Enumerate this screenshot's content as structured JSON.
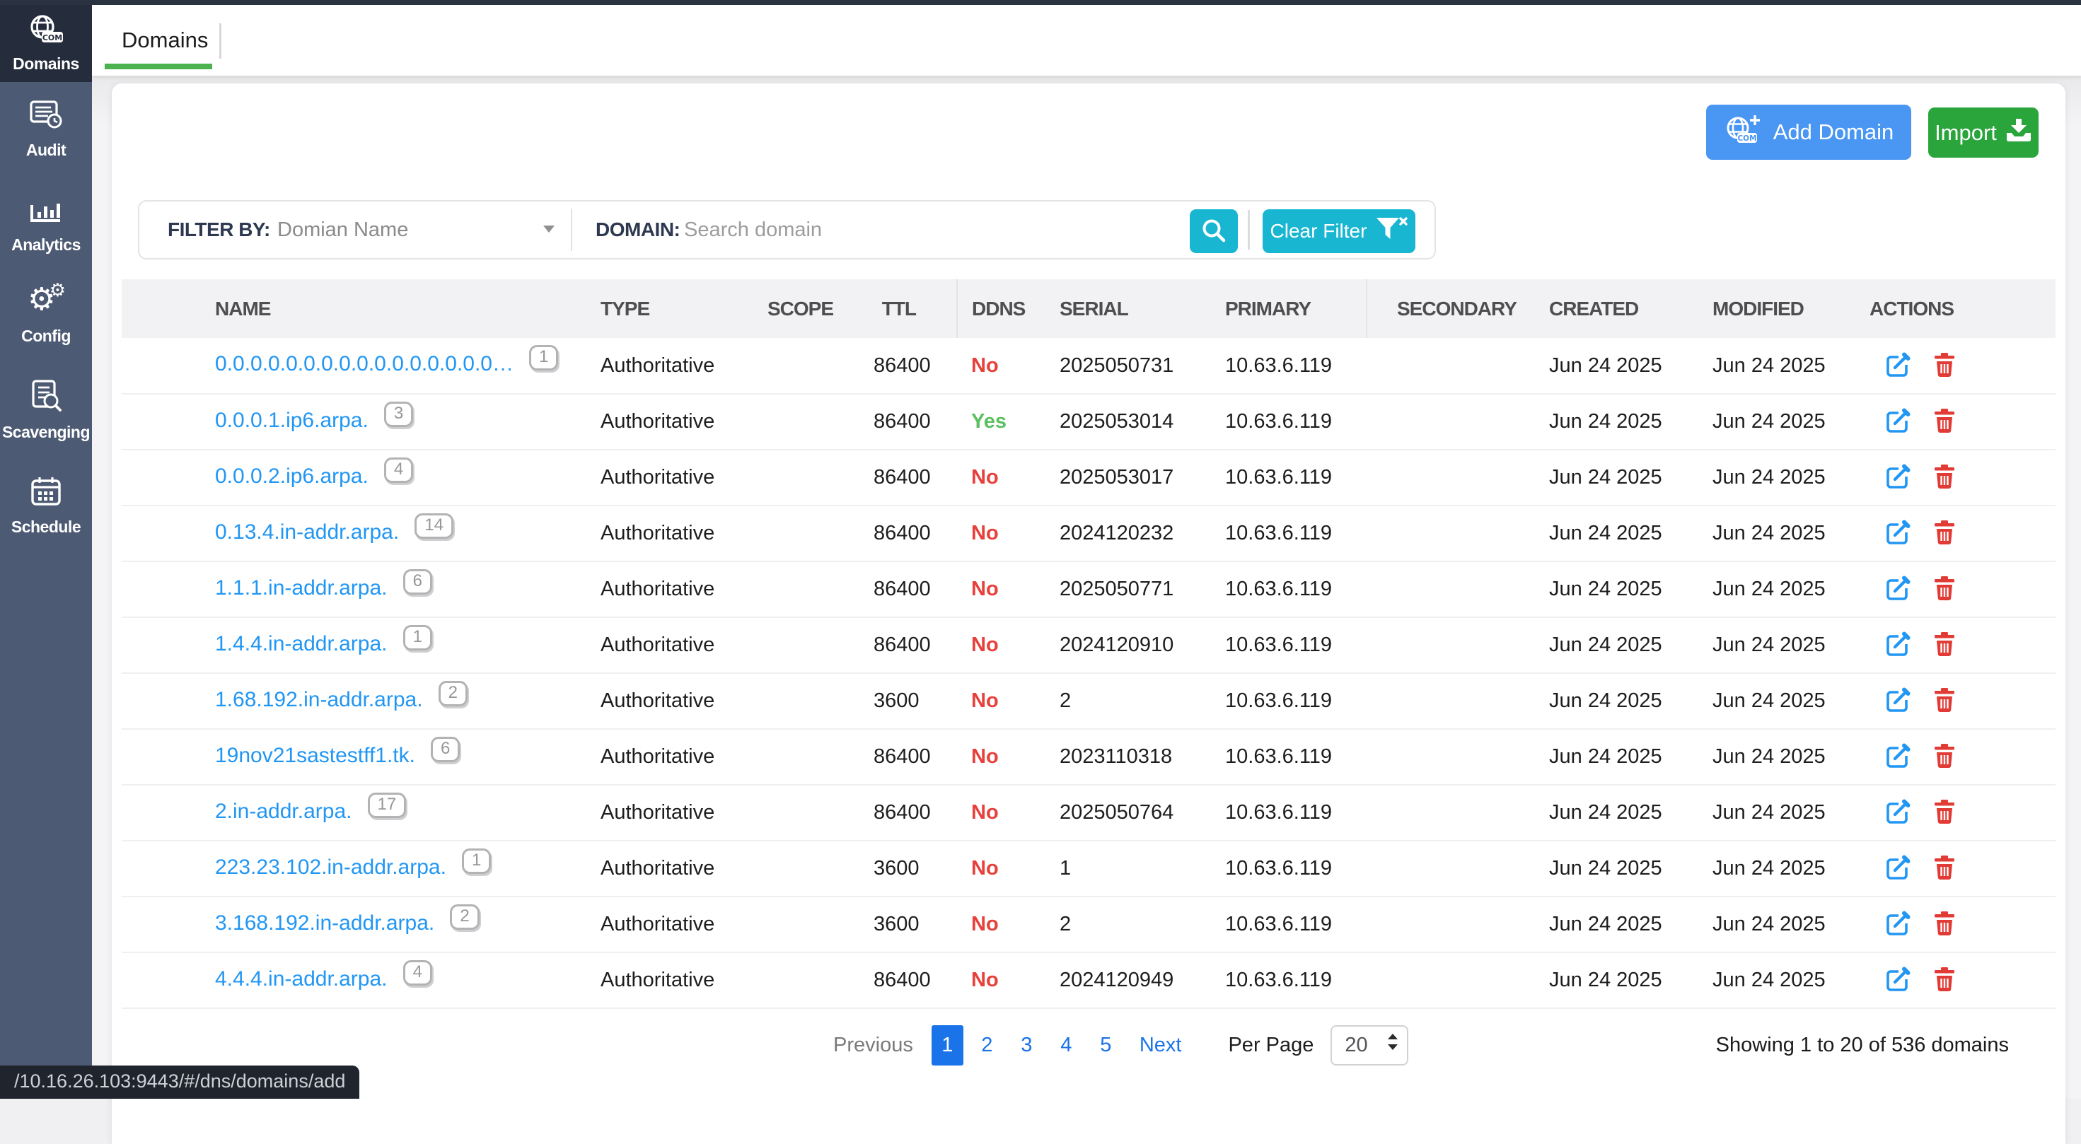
{
  "sidebar": {
    "items": [
      {
        "label": "Domains",
        "icon": "globe-com-icon",
        "active": true
      },
      {
        "label": "Audit",
        "icon": "audit-icon",
        "active": false
      },
      {
        "label": "Analytics",
        "icon": "bar-chart-icon",
        "active": false
      },
      {
        "label": "Config",
        "icon": "gears-icon",
        "active": false
      },
      {
        "label": "Scavenging",
        "icon": "document-search-icon",
        "active": false
      },
      {
        "label": "Schedule",
        "icon": "calendar-icon",
        "active": false
      }
    ]
  },
  "tabbar": {
    "active_tab": "Domains"
  },
  "toolbar": {
    "add_domain_label": "Add Domain",
    "import_label": "Import"
  },
  "filter": {
    "filter_by_label": "FILTER BY:",
    "filter_by_value": "Domian Name",
    "domain_label": "DOMAIN:",
    "search_placeholder": "Search domain",
    "clear_filter_label": "Clear Filter"
  },
  "table": {
    "columns": [
      "NAME",
      "TYPE",
      "SCOPE",
      "TTL",
      "DDNS",
      "SERIAL",
      "PRIMARY",
      "SECONDARY",
      "CREATED",
      "MODIFIED",
      "ACTIONS"
    ],
    "rows": [
      {
        "name": "0.0.0.0.0.0.0.0.0.0.0.0.0.0.0.0…",
        "records": "1",
        "type": "Authoritative",
        "scope": "",
        "ttl": "86400",
        "ddns": "No",
        "serial": "2025050731",
        "primary": "10.63.6.119",
        "secondary": "",
        "created": "Jun 24 2025",
        "modified": "Jun 24 2025"
      },
      {
        "name": "0.0.0.1.ip6.arpa.",
        "records": "3",
        "type": "Authoritative",
        "scope": "",
        "ttl": "86400",
        "ddns": "Yes",
        "serial": "2025053014",
        "primary": "10.63.6.119",
        "secondary": "",
        "created": "Jun 24 2025",
        "modified": "Jun 24 2025"
      },
      {
        "name": "0.0.0.2.ip6.arpa.",
        "records": "4",
        "type": "Authoritative",
        "scope": "",
        "ttl": "86400",
        "ddns": "No",
        "serial": "2025053017",
        "primary": "10.63.6.119",
        "secondary": "",
        "created": "Jun 24 2025",
        "modified": "Jun 24 2025"
      },
      {
        "name": "0.13.4.in-addr.arpa.",
        "records": "14",
        "type": "Authoritative",
        "scope": "",
        "ttl": "86400",
        "ddns": "No",
        "serial": "2024120232",
        "primary": "10.63.6.119",
        "secondary": "",
        "created": "Jun 24 2025",
        "modified": "Jun 24 2025"
      },
      {
        "name": "1.1.1.in-addr.arpa.",
        "records": "6",
        "type": "Authoritative",
        "scope": "",
        "ttl": "86400",
        "ddns": "No",
        "serial": "2025050771",
        "primary": "10.63.6.119",
        "secondary": "",
        "created": "Jun 24 2025",
        "modified": "Jun 24 2025"
      },
      {
        "name": "1.4.4.in-addr.arpa.",
        "records": "1",
        "type": "Authoritative",
        "scope": "",
        "ttl": "86400",
        "ddns": "No",
        "serial": "2024120910",
        "primary": "10.63.6.119",
        "secondary": "",
        "created": "Jun 24 2025",
        "modified": "Jun 24 2025"
      },
      {
        "name": "1.68.192.in-addr.arpa.",
        "records": "2",
        "type": "Authoritative",
        "scope": "",
        "ttl": "3600",
        "ddns": "No",
        "serial": "2",
        "primary": "10.63.6.119",
        "secondary": "",
        "created": "Jun 24 2025",
        "modified": "Jun 24 2025"
      },
      {
        "name": "19nov21sastestff1.tk.",
        "records": "6",
        "type": "Authoritative",
        "scope": "",
        "ttl": "86400",
        "ddns": "No",
        "serial": "2023110318",
        "primary": "10.63.6.119",
        "secondary": "",
        "created": "Jun 24 2025",
        "modified": "Jun 24 2025"
      },
      {
        "name": "2.in-addr.arpa.",
        "records": "17",
        "type": "Authoritative",
        "scope": "",
        "ttl": "86400",
        "ddns": "No",
        "serial": "2025050764",
        "primary": "10.63.6.119",
        "secondary": "",
        "created": "Jun 24 2025",
        "modified": "Jun 24 2025"
      },
      {
        "name": "223.23.102.in-addr.arpa.",
        "records": "1",
        "type": "Authoritative",
        "scope": "",
        "ttl": "3600",
        "ddns": "No",
        "serial": "1",
        "primary": "10.63.6.119",
        "secondary": "",
        "created": "Jun 24 2025",
        "modified": "Jun 24 2025"
      },
      {
        "name": "3.168.192.in-addr.arpa.",
        "records": "2",
        "type": "Authoritative",
        "scope": "",
        "ttl": "3600",
        "ddns": "No",
        "serial": "2",
        "primary": "10.63.6.119",
        "secondary": "",
        "created": "Jun 24 2025",
        "modified": "Jun 24 2025"
      },
      {
        "name": "4.4.4.in-addr.arpa.",
        "records": "4",
        "type": "Authoritative",
        "scope": "",
        "ttl": "86400",
        "ddns": "No",
        "serial": "2024120949",
        "primary": "10.63.6.119",
        "secondary": "",
        "created": "Jun 24 2025",
        "modified": "Jun 24 2025"
      }
    ]
  },
  "pagination": {
    "previous_label": "Previous",
    "pages": [
      "1",
      "2",
      "3",
      "4",
      "5"
    ],
    "active_page": "1",
    "next_label": "Next",
    "per_page_label": "Per Page",
    "per_page_value": "20",
    "summary": "Showing 1 to 20 of 536 domains"
  },
  "statusbar": {
    "url_tooltip": "/10.16.26.103:9443/#/dns/domains/add"
  },
  "colors": {
    "sidebar_bg": "#4d5a73",
    "sidebar_active_bg": "#252d3d",
    "tab_underline_green": "#4bb24e",
    "link_blue": "#2196f3",
    "ddns_no_red": "#e8403a",
    "ddns_yes_green": "#5abf5e",
    "cyan_button": "#19b6d2",
    "add_domain_blue": "#4a96f3",
    "import_green": "#2aa53c",
    "pagination_blue": "#1a73e8",
    "delete_red": "#e23b35"
  }
}
